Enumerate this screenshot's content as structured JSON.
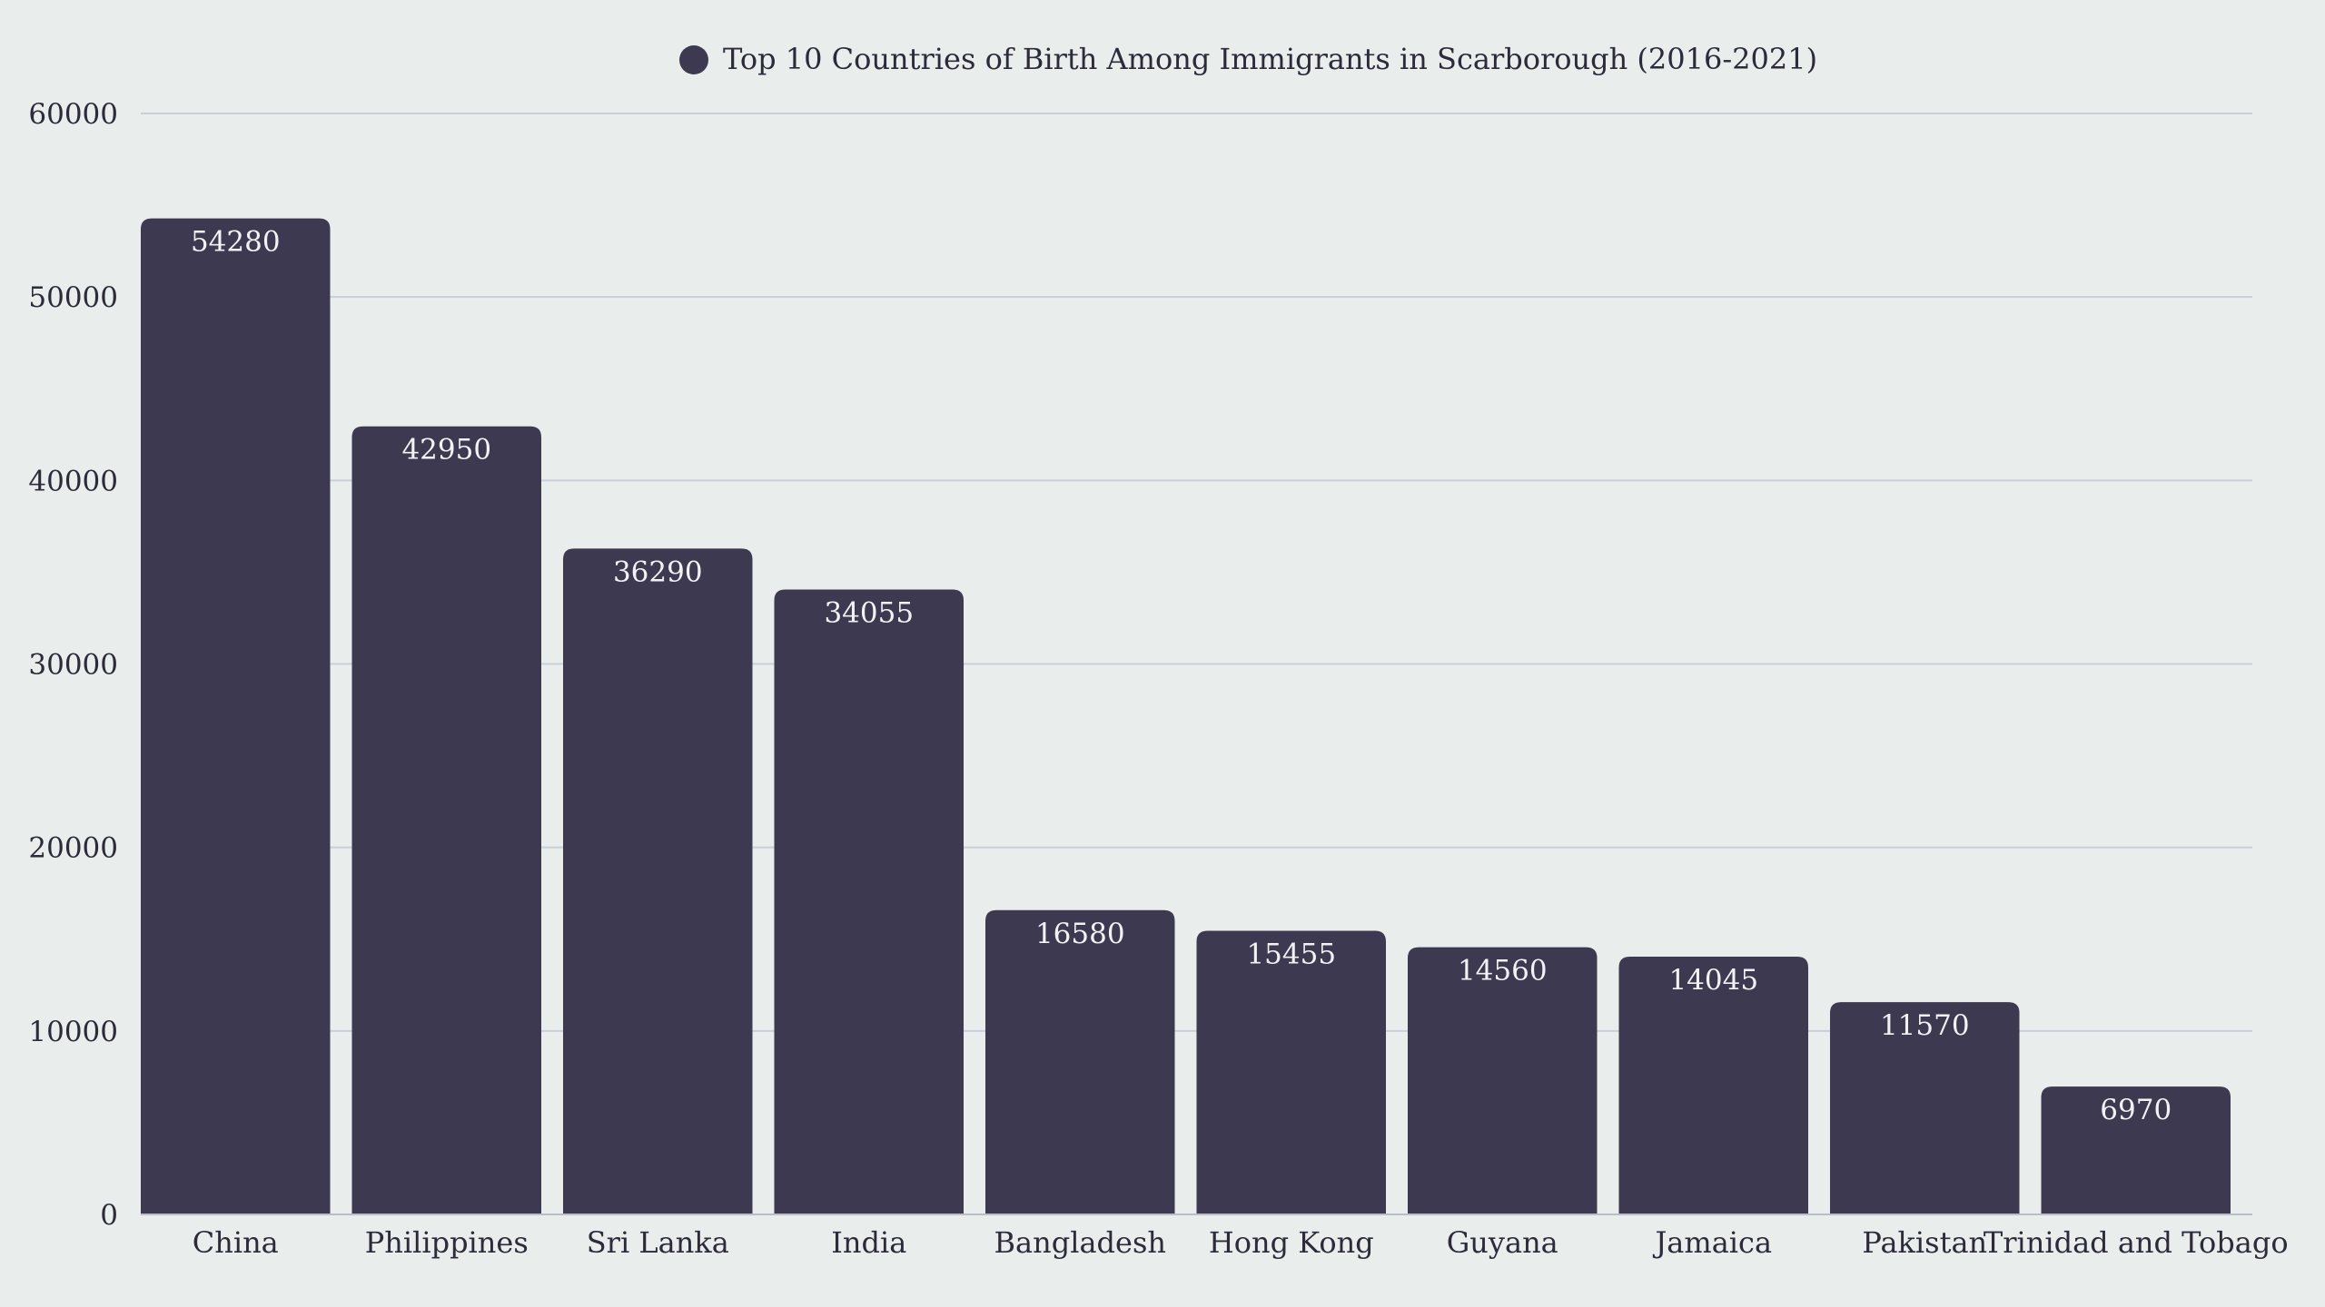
{
  "chart_data": {
    "type": "bar",
    "title": "Top 10 Countries of Birth Among Immigrants in Scarborough (2016-2021)",
    "legend": [
      {
        "name": "Top 10 Countries of Birth Among Immigrants in Scarborough (2016-2021)",
        "color": "#3d3950"
      }
    ],
    "legend_position": "top-center",
    "categories": [
      "China",
      "Philippines",
      "Sri Lanka",
      "India",
      "Bangladesh",
      "Hong Kong",
      "Guyana",
      "Jamaica",
      "Pakistan",
      "Trinidad and Tobago"
    ],
    "series": [
      {
        "name": "Top 10 Countries of Birth Among Immigrants in Scarborough (2016-2021)",
        "color": "#3d3950",
        "values": [
          54280,
          42950,
          36290,
          34055,
          16580,
          15455,
          14560,
          14045,
          11570,
          6970
        ]
      }
    ],
    "data_labels": [
      "54280",
      "42950",
      "36290",
      "34055",
      "16580",
      "15455",
      "14560",
      "14045",
      "11570",
      "6970"
    ],
    "xlabel": "",
    "ylabel": "",
    "ylim": [
      0,
      60000
    ],
    "yticks": [
      0,
      10000,
      20000,
      30000,
      40000,
      50000,
      60000
    ],
    "ytick_labels": [
      "0",
      "10000",
      "20000",
      "30000",
      "40000",
      "50000",
      "60000"
    ],
    "grid": true,
    "colors": {
      "background": "#e9eeec",
      "bar": "#3d3950",
      "grid": "#c9ceda",
      "text": "#2d2a3a",
      "data_label": "#f2f2f5"
    }
  }
}
